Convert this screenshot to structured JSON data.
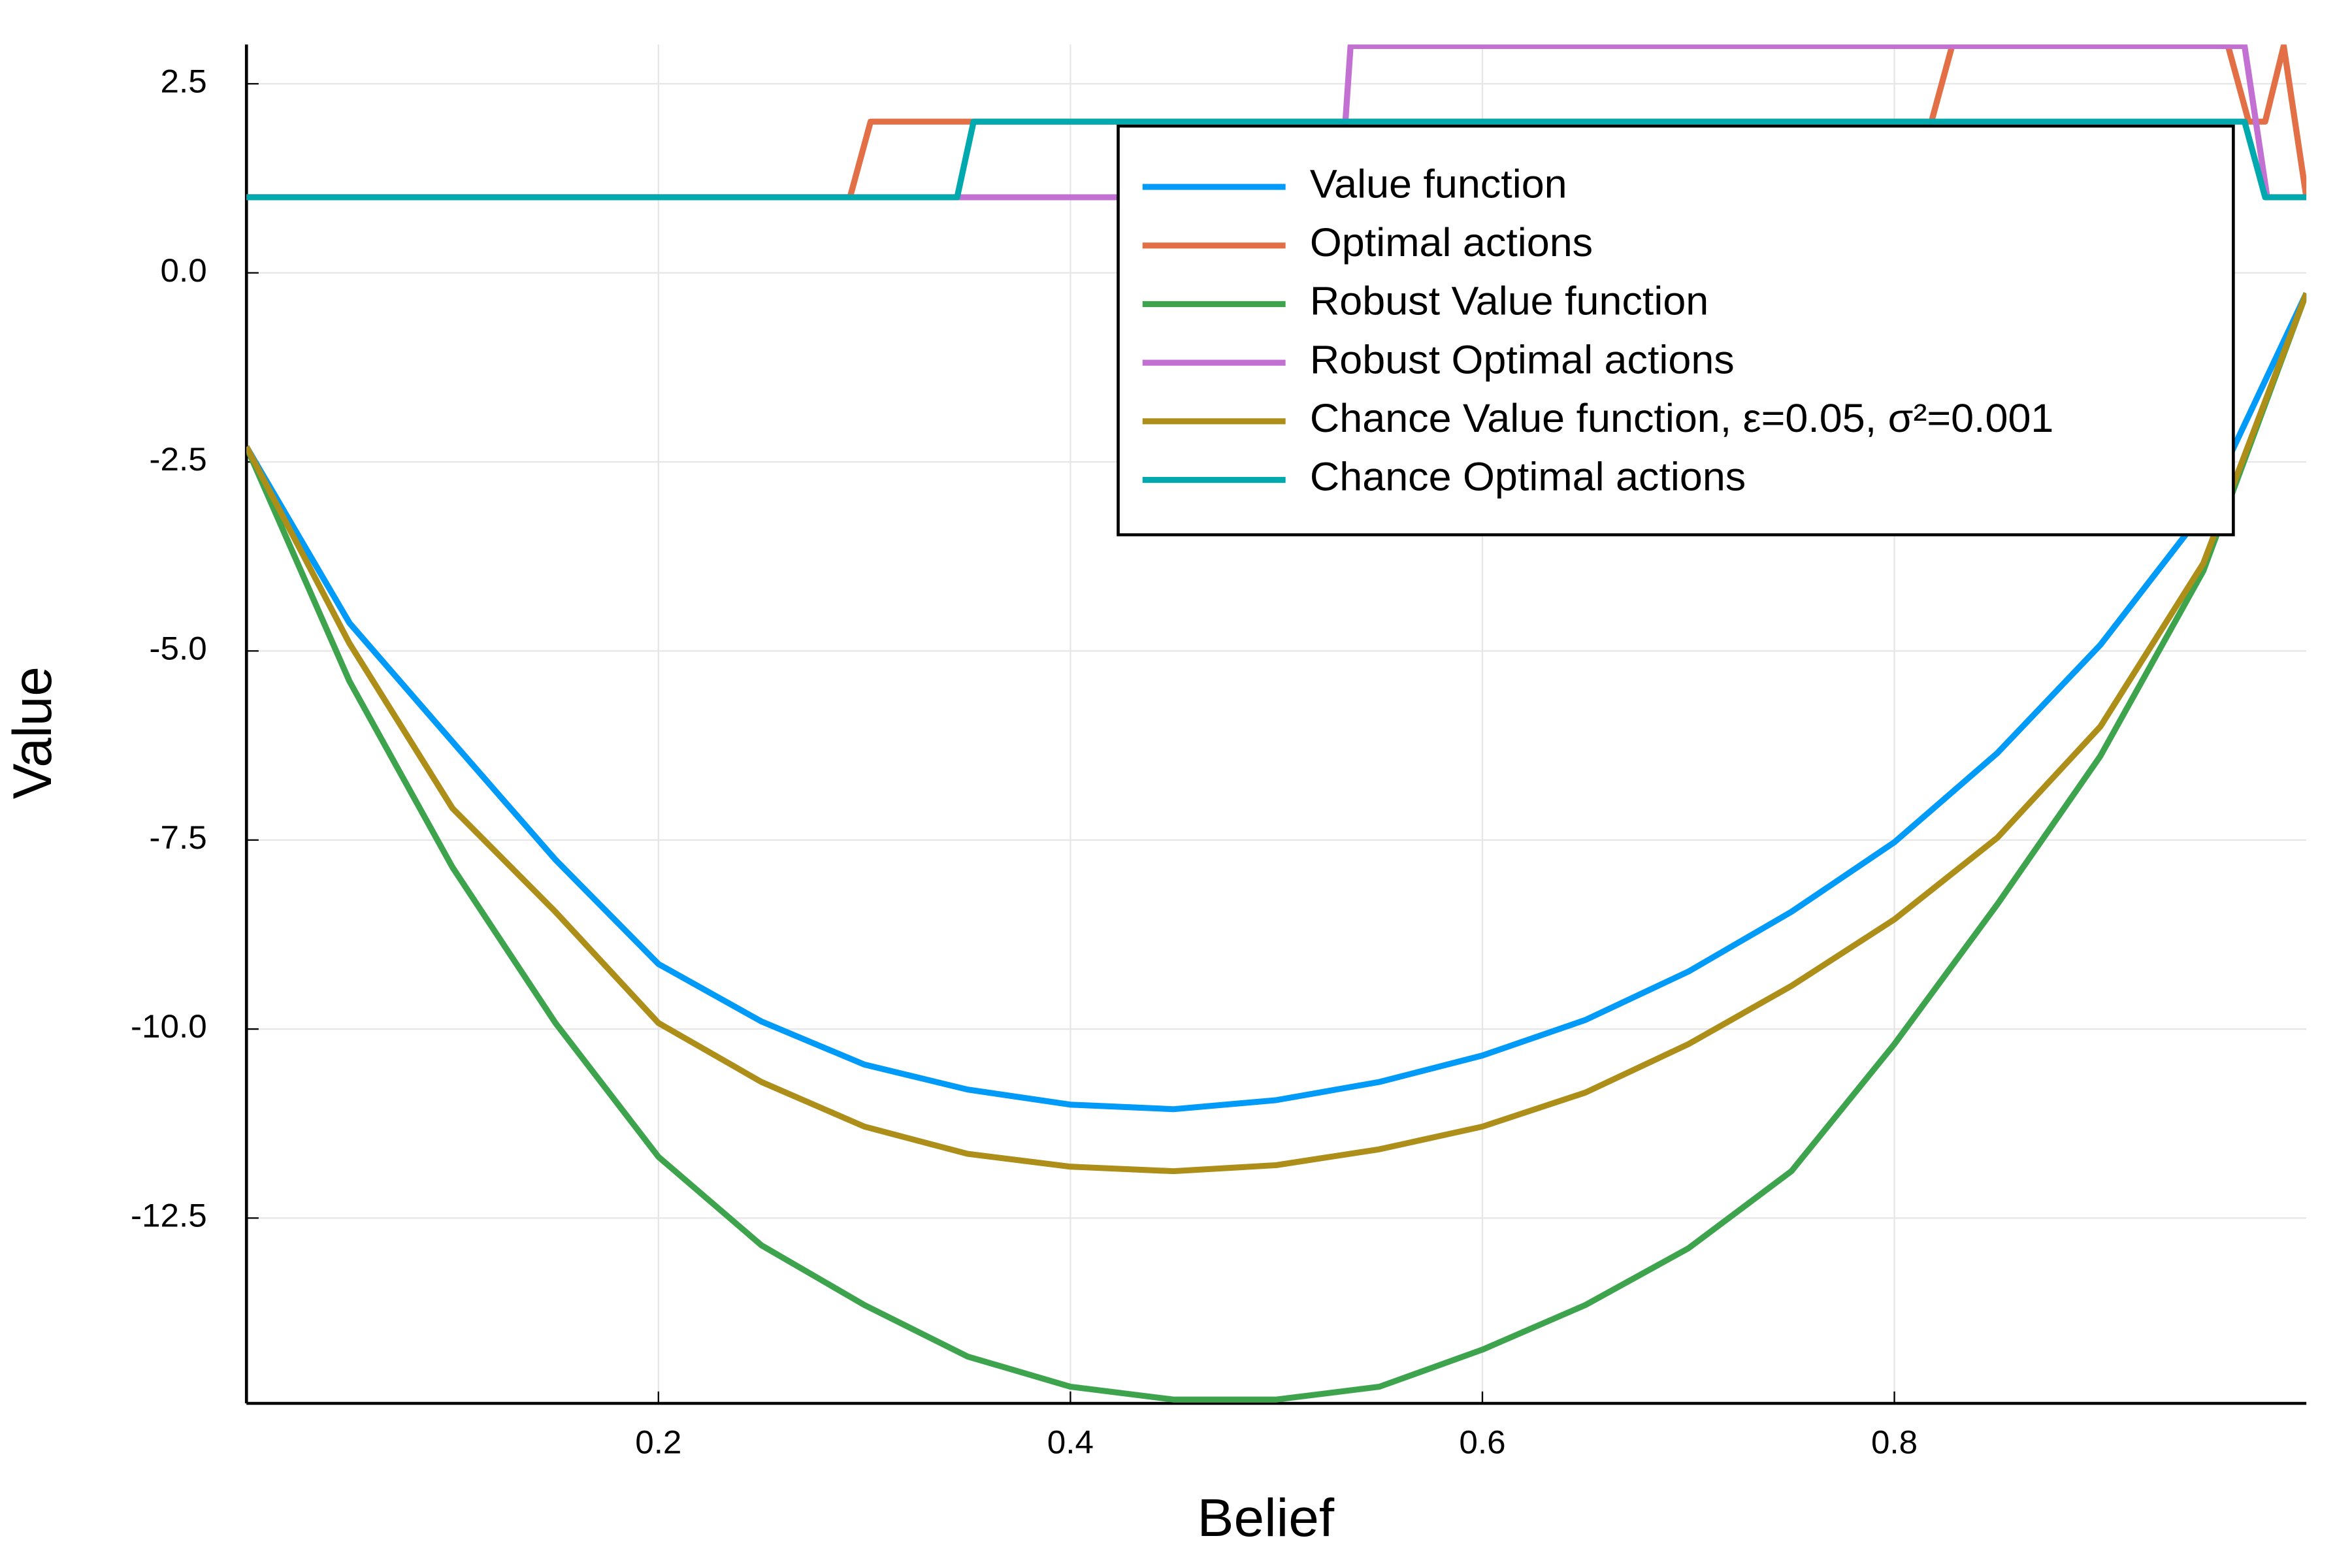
{
  "chart_data": {
    "type": "line",
    "x_label": "Belief",
    "y_label": "Value",
    "xlim": [
      0,
      1.0
    ],
    "ylim": [
      -14.95,
      3.02
    ],
    "xticks": [
      0.2,
      0.4,
      0.6,
      0.8
    ],
    "yticks": [
      {
        "value": 2.5,
        "label": "2.5"
      },
      {
        "value": 0,
        "label": "0.0"
      },
      -2.5,
      {
        "value": -5,
        "label": "-5.0"
      },
      -7.5,
      {
        "value": -10,
        "label": "-10.0"
      },
      -12.5
    ],
    "grid": true,
    "legend": "upper right",
    "series": [
      {
        "name": "Value function",
        "color": "#009af9",
        "x": [
          0,
          0.05,
          0.1,
          0.15,
          0.2,
          0.25,
          0.3,
          0.35,
          0.4,
          0.45,
          0.5,
          0.55,
          0.6,
          0.65,
          0.7,
          0.75,
          0.8,
          0.85,
          0.9,
          0.95,
          1.0
        ],
        "values": [
          -2.3,
          -4.63,
          -6.2,
          -7.76,
          -9.14,
          -9.9,
          -10.47,
          -10.8,
          -11.0,
          -11.06,
          -10.94,
          -10.7,
          -10.35,
          -9.88,
          -9.24,
          -8.45,
          -7.53,
          -6.35,
          -4.92,
          -3.16,
          -0.27
        ]
      },
      {
        "name": "Optimal actions",
        "color": "#e26f46",
        "x": [
          0,
          0.293,
          0.303,
          0.818,
          0.828,
          0.962,
          0.972,
          0.98,
          0.989,
          1.0
        ],
        "values": [
          1,
          1,
          2,
          2,
          3,
          3,
          2,
          2,
          3,
          1
        ]
      },
      {
        "name": "Robust Value function",
        "color": "#3da44d",
        "x": [
          0,
          0.05,
          0.1,
          0.15,
          0.2,
          0.25,
          0.3,
          0.35,
          0.4,
          0.45,
          0.5,
          0.55,
          0.6,
          0.65,
          0.7,
          0.75,
          0.8,
          0.85,
          0.9,
          0.95,
          1.0
        ],
        "values": [
          -2.3,
          -5.4,
          -7.86,
          -9.92,
          -11.69,
          -12.86,
          -13.65,
          -14.33,
          -14.73,
          -14.9,
          -14.9,
          -14.73,
          -14.24,
          -13.65,
          -12.9,
          -11.88,
          -10.2,
          -8.35,
          -6.39,
          -3.94,
          -0.27
        ]
      },
      {
        "name": "Robust Optimal actions",
        "color": "#c271d2",
        "x": [
          0,
          0.531,
          0.536,
          0.97,
          0.981,
          1.0
        ],
        "values": [
          1,
          1,
          3,
          3,
          1,
          1
        ]
      },
      {
        "name": "Chance Value function,  ε=0.05, σ²=0.001",
        "color": "#ac8e18",
        "x": [
          0,
          0.05,
          0.1,
          0.15,
          0.2,
          0.25,
          0.3,
          0.35,
          0.4,
          0.45,
          0.5,
          0.55,
          0.6,
          0.65,
          0.7,
          0.75,
          0.8,
          0.85,
          0.9,
          0.95,
          1.0
        ],
        "values": [
          -2.3,
          -4.9,
          -7.08,
          -8.45,
          -9.92,
          -10.7,
          -11.29,
          -11.65,
          -11.82,
          -11.88,
          -11.8,
          -11.59,
          -11.29,
          -10.84,
          -10.2,
          -9.43,
          -8.55,
          -7.47,
          -6.0,
          -3.84,
          -0.27
        ]
      },
      {
        "name": "Chance Optimal actions",
        "color": "#00a9ad",
        "x": [
          0,
          0.345,
          0.353,
          0.97,
          0.98,
          1.0
        ],
        "values": [
          1,
          1,
          2,
          2,
          1,
          1
        ]
      }
    ]
  }
}
